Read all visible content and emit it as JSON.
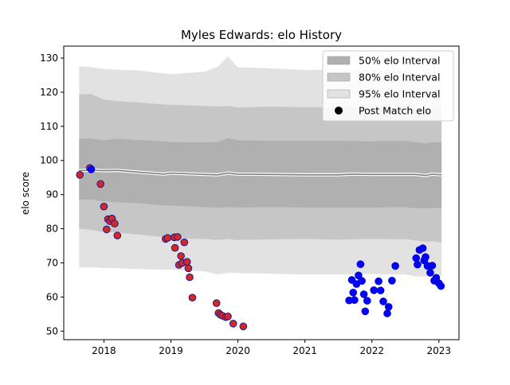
{
  "chart_data": {
    "type": "scatter",
    "title": "Myles Edwards: elo History",
    "xlabel": "",
    "ylabel": "elo score",
    "xlim": [
      2017.4,
      2023.3
    ],
    "ylim": [
      47.5,
      133.5
    ],
    "x_ticks": [
      2018,
      2019,
      2020,
      2021,
      2022,
      2023
    ],
    "x_tick_labels": [
      "2018",
      "2019",
      "2020",
      "2021",
      "2022",
      "2023"
    ],
    "y_ticks": [
      50,
      60,
      70,
      80,
      90,
      100,
      110,
      120,
      130
    ],
    "y_tick_labels": [
      "50",
      "60",
      "70",
      "80",
      "90",
      "100",
      "110",
      "120",
      "130"
    ],
    "grid": false,
    "legend_position": "top-right",
    "legend": [
      {
        "label": "50% elo Interval",
        "kind": "patch",
        "color": "#b0b0b0"
      },
      {
        "label": "80% elo Interval",
        "kind": "patch",
        "color": "#c6c6c6"
      },
      {
        "label": "95% elo Interval",
        "kind": "patch",
        "color": "#e2e2e2"
      },
      {
        "label": "Post Match elo",
        "kind": "marker",
        "color": "#000000"
      }
    ],
    "colors": {
      "band50": "#b0b0b0",
      "band80": "#c6c6c6",
      "band95": "#e2e2e2",
      "mean_line": "#808080",
      "mean_halo": "#ffffff",
      "point_blue": "#0000ff",
      "point_red": "#d62728",
      "point_edge_blue": "#0000cc",
      "point_edge_red": "#1a1a8c"
    },
    "bands": {
      "x": [
        2017.63,
        2017.8,
        2018.0,
        2018.2,
        2018.5,
        2018.9,
        2019.0,
        2019.5,
        2019.7,
        2019.85,
        2020.0,
        2020.5,
        2021.0,
        2021.5,
        2021.7,
        2022.0,
        2022.5,
        2022.65,
        2022.8,
        2022.9,
        2023.04
      ],
      "mean": [
        97.0,
        97.2,
        97.0,
        97.1,
        96.6,
        96.0,
        96.3,
        95.9,
        95.8,
        96.3,
        96.0,
        95.9,
        95.8,
        95.8,
        96.0,
        95.9,
        95.9,
        95.9,
        95.6,
        96.0,
        95.8
      ],
      "p50_low": [
        88.5,
        88.6,
        88.0,
        87.7,
        87.5,
        86.8,
        86.8,
        86.3,
        86.2,
        86.3,
        86.2,
        86.3,
        86.2,
        86.2,
        86.2,
        86.2,
        86.3,
        86.0,
        86.0,
        86.0,
        86.1
      ],
      "p50_high": [
        106.3,
        106.5,
        105.9,
        106.4,
        106.0,
        105.6,
        105.4,
        105.3,
        105.4,
        106.6,
        105.9,
        105.8,
        105.8,
        105.8,
        105.7,
        105.6,
        105.8,
        105.4,
        105.0,
        105.3,
        105.4
      ],
      "p80_low": [
        80.0,
        79.7,
        79.0,
        78.9,
        78.3,
        77.5,
        77.2,
        77.0,
        76.7,
        77.0,
        76.7,
        76.9,
        77.0,
        76.8,
        76.9,
        77.0,
        76.9,
        76.6,
        76.2,
        76.3,
        76.0
      ],
      "p80_high": [
        119.3,
        119.5,
        117.8,
        117.4,
        117.0,
        116.4,
        116.3,
        116.0,
        115.8,
        116.0,
        115.5,
        115.8,
        115.6,
        115.6,
        115.6,
        115.8,
        115.7,
        115.6,
        114.8,
        115.3,
        115.6
      ],
      "p95_low": [
        68.6,
        68.7,
        68.5,
        68.4,
        68.2,
        68.0,
        68.0,
        67.5,
        66.6,
        67.0,
        67.0,
        66.8,
        66.6,
        66.6,
        66.6,
        66.7,
        66.6,
        66.0,
        66.0,
        66.3,
        66.2
      ],
      "p95_high": [
        127.6,
        127.4,
        126.8,
        126.6,
        126.4,
        125.5,
        125.3,
        126.0,
        127.5,
        130.5,
        127.3,
        127.0,
        126.5,
        126.7,
        126.6,
        126.3,
        126.2,
        125.5,
        125.5,
        125.3,
        125.5
      ]
    },
    "series": [
      {
        "marker_color": "red",
        "points": [
          [
            2017.64,
            95.8
          ],
          [
            2017.79,
            97.8
          ],
          [
            2017.95,
            93.1
          ],
          [
            2018.0,
            86.5
          ],
          [
            2018.04,
            79.8
          ],
          [
            2018.06,
            82.8
          ],
          [
            2018.09,
            82.2
          ],
          [
            2018.12,
            83.0
          ],
          [
            2018.16,
            81.5
          ],
          [
            2018.2,
            78.0
          ],
          [
            2018.92,
            77.0
          ],
          [
            2018.95,
            77.3
          ],
          [
            2019.05,
            77.5
          ],
          [
            2019.06,
            74.4
          ],
          [
            2019.1,
            77.6
          ],
          [
            2019.12,
            69.4
          ],
          [
            2019.15,
            72.0
          ],
          [
            2019.17,
            70.0
          ],
          [
            2019.2,
            76.0
          ],
          [
            2019.24,
            70.3
          ],
          [
            2019.26,
            68.4
          ],
          [
            2019.28,
            65.8
          ],
          [
            2019.32,
            59.8
          ],
          [
            2019.68,
            58.2
          ],
          [
            2019.71,
            55.3
          ],
          [
            2019.74,
            54.8
          ],
          [
            2019.77,
            54.5
          ],
          [
            2019.82,
            54.1
          ],
          [
            2019.85,
            54.3
          ],
          [
            2019.93,
            52.2
          ],
          [
            2020.08,
            51.4
          ]
        ]
      },
      {
        "marker_color": "blue",
        "points": [
          [
            2017.81,
            97.4
          ],
          [
            2021.66,
            59.0
          ],
          [
            2021.7,
            65.0
          ],
          [
            2021.72,
            61.3
          ],
          [
            2021.74,
            59.1
          ],
          [
            2021.77,
            63.8
          ],
          [
            2021.8,
            66.3
          ],
          [
            2021.83,
            69.6
          ],
          [
            2021.85,
            64.7
          ],
          [
            2021.88,
            60.8
          ],
          [
            2021.9,
            55.8
          ],
          [
            2021.93,
            58.9
          ],
          [
            2022.03,
            62.0
          ],
          [
            2022.1,
            64.6
          ],
          [
            2022.13,
            61.9
          ],
          [
            2022.17,
            58.7
          ],
          [
            2022.23,
            55.2
          ],
          [
            2022.25,
            57.1
          ],
          [
            2022.3,
            64.8
          ],
          [
            2022.35,
            69.1
          ],
          [
            2022.66,
            71.4
          ],
          [
            2022.68,
            69.5
          ],
          [
            2022.71,
            73.8
          ],
          [
            2022.76,
            74.3
          ],
          [
            2022.78,
            70.7
          ],
          [
            2022.8,
            71.7
          ],
          [
            2022.83,
            69.1
          ],
          [
            2022.87,
            67.1
          ],
          [
            2022.9,
            69.2
          ],
          [
            2022.93,
            64.8
          ],
          [
            2022.96,
            65.6
          ],
          [
            2023.0,
            64.0
          ],
          [
            2023.03,
            63.2
          ]
        ]
      }
    ]
  }
}
